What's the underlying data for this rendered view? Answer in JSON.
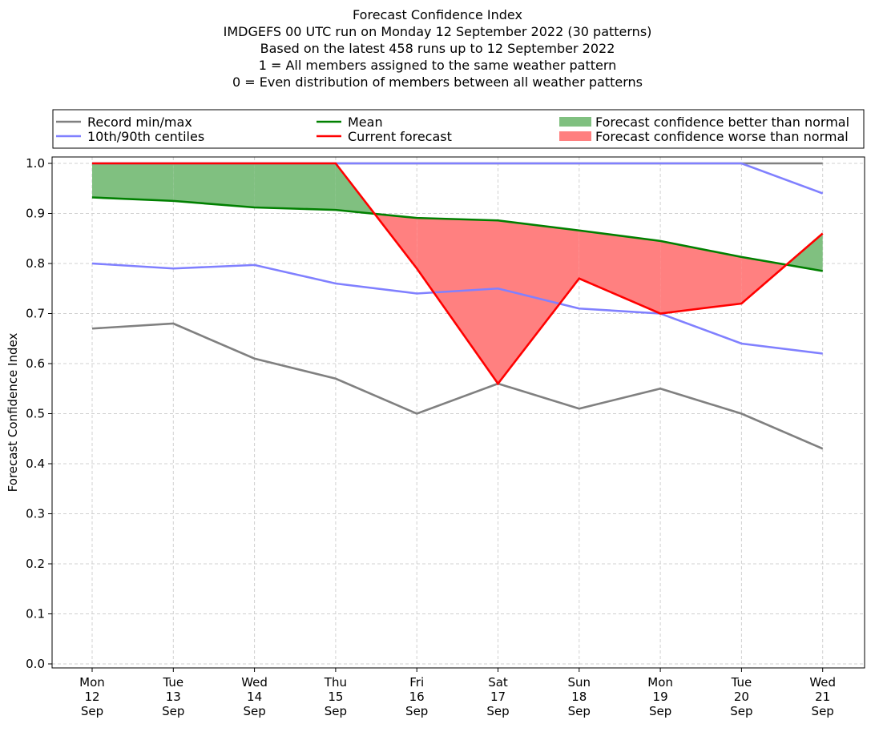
{
  "chart_data": {
    "type": "line",
    "title_lines": [
      "Forecast Confidence Index",
      "IMDGEFS 00 UTC run on Monday 12 September 2022 (30 patterns)",
      "Based on the latest 458 runs up to 12 September 2022",
      "1 = All members assigned to the same weather pattern",
      "0 = Even distribution of members between all weather patterns"
    ],
    "ylabel": "Forecast Confidence Index",
    "ylim": [
      0.0,
      1.0
    ],
    "yticks": [
      "0.0",
      "0.1",
      "0.2",
      "0.3",
      "0.4",
      "0.5",
      "0.6",
      "0.7",
      "0.8",
      "0.9",
      "1.0"
    ],
    "grid": true,
    "legend_position": "top, above plot",
    "x_labels": [
      [
        "Mon",
        "12",
        "Sep"
      ],
      [
        "Tue",
        "13",
        "Sep"
      ],
      [
        "Wed",
        "14",
        "Sep"
      ],
      [
        "Thu",
        "15",
        "Sep"
      ],
      [
        "Fri",
        "16",
        "Sep"
      ],
      [
        "Sat",
        "17",
        "Sep"
      ],
      [
        "Sun",
        "18",
        "Sep"
      ],
      [
        "Mon",
        "19",
        "Sep"
      ],
      [
        "Tue",
        "20",
        "Sep"
      ],
      [
        "Wed",
        "21",
        "Sep"
      ]
    ],
    "series": [
      {
        "key": "record_min",
        "values": [
          0.67,
          0.68,
          0.61,
          0.57,
          0.5,
          0.56,
          0.51,
          0.55,
          0.5,
          0.43
        ],
        "color": "#808080"
      },
      {
        "key": "record_max",
        "values": [
          1.0,
          1.0,
          1.0,
          1.0,
          1.0,
          1.0,
          1.0,
          1.0,
          1.0,
          1.0
        ],
        "color": "#808080"
      },
      {
        "key": "p10",
        "values": [
          0.8,
          0.79,
          0.797,
          0.76,
          0.74,
          0.75,
          0.71,
          0.7,
          0.64,
          0.62
        ],
        "color": "#8080ff"
      },
      {
        "key": "p90",
        "values": [
          1.0,
          1.0,
          1.0,
          1.0,
          1.0,
          1.0,
          1.0,
          1.0,
          1.0,
          0.94
        ],
        "color": "#8080ff"
      },
      {
        "key": "mean",
        "values": [
          0.932,
          0.925,
          0.912,
          0.907,
          0.891,
          0.886,
          0.866,
          0.845,
          0.813,
          0.785
        ],
        "color": "#008000"
      },
      {
        "key": "current",
        "values": [
          1.0,
          1.0,
          1.0,
          1.0,
          0.79,
          0.56,
          0.77,
          0.7,
          0.72,
          0.86
        ],
        "color": "#ff0000"
      }
    ],
    "fills": {
      "better": "#80c080",
      "worse": "#ff8080"
    },
    "legend": [
      {
        "label": "Record min/max",
        "kind": "line",
        "color": "#808080"
      },
      {
        "label": "10th/90th centiles",
        "kind": "line",
        "color": "#8080ff"
      },
      {
        "label": "Mean",
        "kind": "line",
        "color": "#008000"
      },
      {
        "label": "Current forecast",
        "kind": "line",
        "color": "#ff0000"
      },
      {
        "label": "Forecast confidence better than normal",
        "kind": "patch",
        "color": "#80c080"
      },
      {
        "label": "Forecast confidence worse than normal",
        "kind": "patch",
        "color": "#ff8080"
      }
    ]
  }
}
